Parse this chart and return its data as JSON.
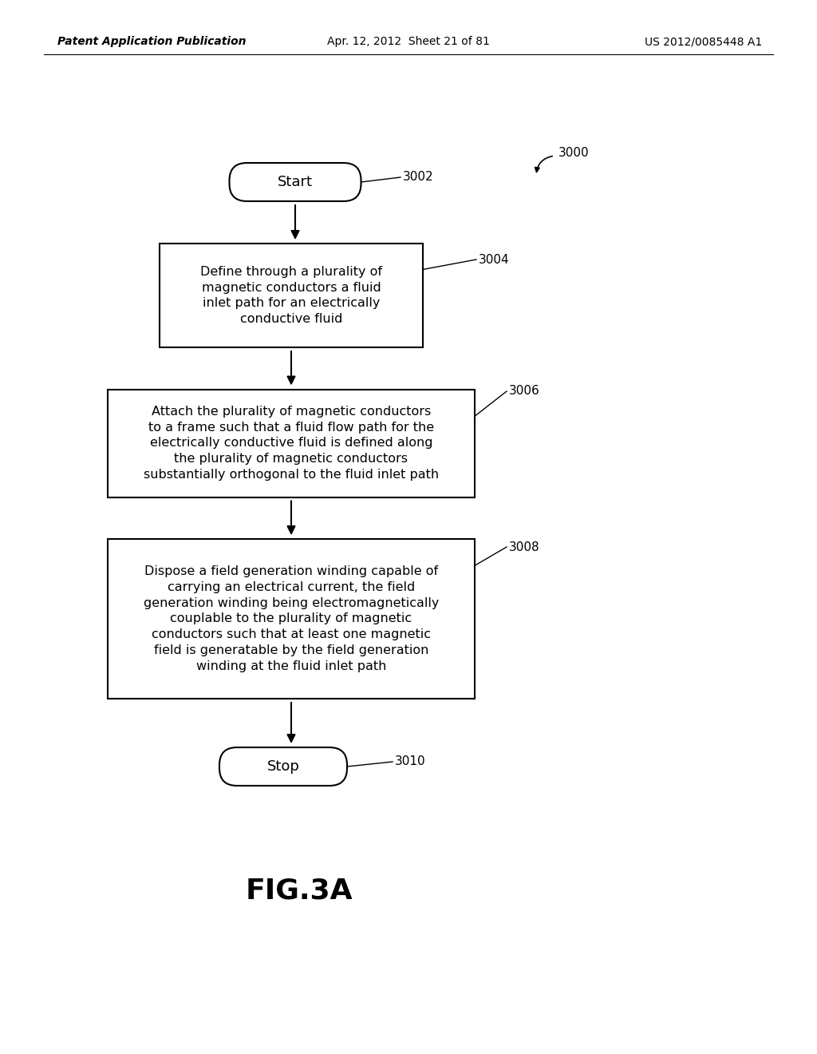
{
  "background_color": "#ffffff",
  "header_left": "Patent Application Publication",
  "header_center": "Apr. 12, 2012  Sheet 21 of 81",
  "header_right": "US 2012/0085448 A1",
  "fig_label": "FIG.3A",
  "fig_label_fontsize": 26,
  "start_text": "Start",
  "stop_text": "Stop",
  "box3004_text": "Define through a plurality of\nmagnetic conductors a fluid\ninlet path for an electrically\nconductive fluid",
  "box3006_text": "Attach the plurality of magnetic conductors\nto a frame such that a fluid flow path for the\nelectrically conductive fluid is defined along\nthe plurality of magnetic conductors\nsubstantially orthogonal to the fluid inlet path",
  "box3008_text": "Dispose a field generation winding capable of\ncarrying an electrical current, the field\ngeneration winding being electromagnetically\ncouplable to the plurality of magnetic\nconductors such that at least one magnetic\nfield is generatable by the field generation\nwinding at the fluid inlet path",
  "label_3000": "3000",
  "label_3002": "3002",
  "label_3004": "3004",
  "label_3006": "3006",
  "label_3008": "3008",
  "label_3010": "3010",
  "line_color": "#000000",
  "text_color": "#000000"
}
